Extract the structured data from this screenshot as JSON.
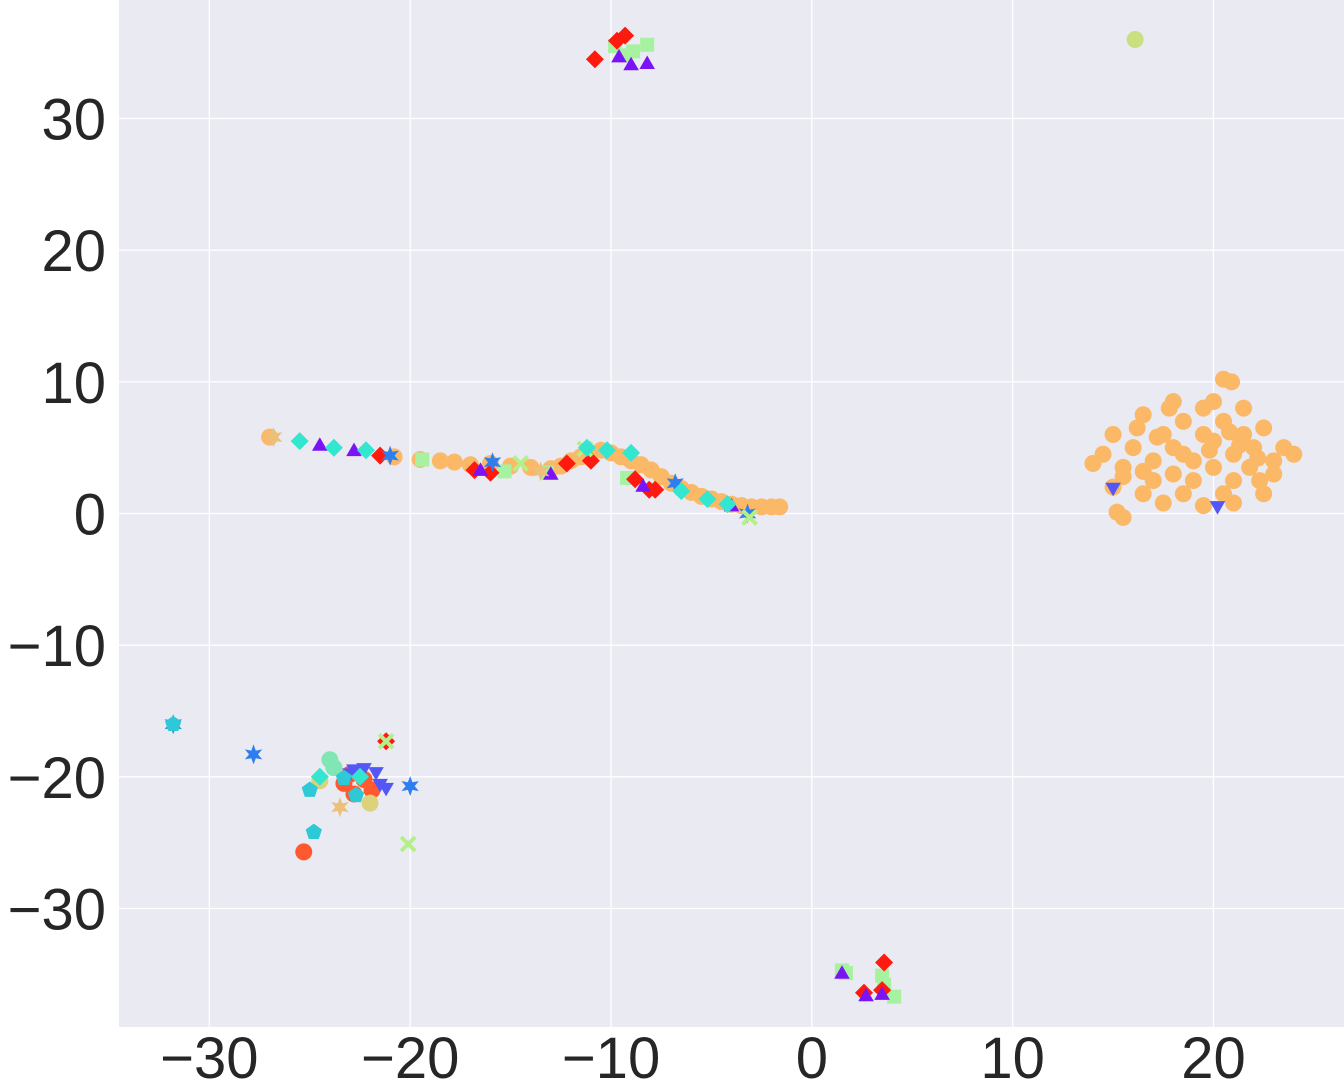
{
  "chart_data": {
    "type": "scatter",
    "title": "",
    "xlabel": "",
    "ylabel": "",
    "xlim": [
      -34.5,
      26.5
    ],
    "ylim": [
      -39,
      39
    ],
    "grid": true,
    "legend": "none",
    "background": "#eaeaf2",
    "x_ticks": [
      {
        "value": -30,
        "label": "−30"
      },
      {
        "value": -20,
        "label": "−20"
      },
      {
        "value": -10,
        "label": "−10"
      },
      {
        "value": 0,
        "label": "0"
      },
      {
        "value": 10,
        "label": "10"
      },
      {
        "value": 20,
        "label": "20"
      }
    ],
    "y_ticks": [
      {
        "value": 30,
        "label": "30"
      },
      {
        "value": 20,
        "label": "20"
      },
      {
        "value": 10,
        "label": "10"
      },
      {
        "value": 0,
        "label": "0"
      },
      {
        "value": -10,
        "label": "−10"
      },
      {
        "value": -20,
        "label": "−20"
      },
      {
        "value": -30,
        "label": "−30"
      }
    ],
    "series": [
      {
        "marker": "circle",
        "color": "#fbb867",
        "points": [
          [
            -27.0,
            5.8
          ],
          [
            -20.8,
            4.3
          ],
          [
            -19.5,
            4.1
          ],
          [
            -18.5,
            4.0
          ],
          [
            -17.8,
            3.9
          ],
          [
            -17.0,
            3.7
          ],
          [
            -16.0,
            3.8
          ],
          [
            -15.0,
            3.6
          ],
          [
            -14.0,
            3.5
          ],
          [
            -13.0,
            3.4
          ],
          [
            -12.5,
            3.6
          ],
          [
            -12.0,
            4.0
          ],
          [
            -11.5,
            4.3
          ],
          [
            -11.0,
            4.6
          ],
          [
            -10.5,
            4.8
          ],
          [
            -10.0,
            4.6
          ],
          [
            -9.5,
            4.3
          ],
          [
            -9.0,
            4.0
          ],
          [
            -8.5,
            3.7
          ],
          [
            -8.0,
            3.3
          ],
          [
            -7.5,
            2.8
          ],
          [
            -7.0,
            2.3
          ],
          [
            -6.5,
            1.9
          ],
          [
            -6.0,
            1.6
          ],
          [
            -5.5,
            1.3
          ],
          [
            -5.0,
            1.1
          ],
          [
            -4.5,
            0.9
          ],
          [
            -4.0,
            0.7
          ],
          [
            -3.5,
            0.6
          ],
          [
            -3.0,
            0.5
          ],
          [
            -2.5,
            0.5
          ],
          [
            -2.0,
            0.5
          ],
          [
            -1.6,
            0.5
          ],
          [
            15.0,
            2.0
          ],
          [
            15.5,
            3.5
          ],
          [
            16.0,
            5.0
          ],
          [
            16.2,
            6.5
          ],
          [
            16.5,
            7.5
          ],
          [
            17.0,
            4.0
          ],
          [
            17.0,
            2.5
          ],
          [
            17.5,
            6.0
          ],
          [
            17.8,
            8.0
          ],
          [
            18.0,
            3.0
          ],
          [
            18.0,
            5.0
          ],
          [
            18.5,
            1.5
          ],
          [
            18.5,
            7.0
          ],
          [
            19.0,
            4.0
          ],
          [
            19.0,
            2.5
          ],
          [
            19.5,
            6.0
          ],
          [
            19.5,
            8.0
          ],
          [
            20.0,
            3.5
          ],
          [
            20.0,
            5.5
          ],
          [
            20.5,
            1.5
          ],
          [
            20.5,
            7.0
          ],
          [
            21.0,
            4.5
          ],
          [
            21.0,
            2.5
          ],
          [
            21.5,
            6.0
          ],
          [
            21.8,
            3.5
          ],
          [
            22.0,
            5.0
          ],
          [
            22.3,
            2.5
          ],
          [
            22.5,
            6.5
          ],
          [
            23.0,
            4.0
          ],
          [
            23.0,
            3.0
          ],
          [
            23.5,
            5.0
          ],
          [
            24.0,
            4.5
          ],
          [
            14.5,
            4.5
          ],
          [
            14.0,
            3.8
          ],
          [
            15.0,
            6.0
          ],
          [
            16.5,
            1.5
          ],
          [
            17.5,
            0.8
          ],
          [
            19.5,
            0.6
          ],
          [
            21.0,
            0.8
          ],
          [
            22.5,
            1.5
          ],
          [
            18.0,
            8.5
          ],
          [
            20.0,
            8.5
          ],
          [
            21.5,
            8.0
          ],
          [
            15.5,
            2.8
          ],
          [
            16.5,
            3.2
          ],
          [
            18.5,
            4.5
          ],
          [
            19.8,
            4.8
          ],
          [
            21.3,
            5.2
          ],
          [
            22.2,
            4.2
          ],
          [
            17.2,
            5.8
          ],
          [
            20.8,
            6.2
          ],
          [
            20.5,
            10.2
          ],
          [
            20.9,
            10.0
          ],
          [
            15.5,
            -0.3
          ],
          [
            15.2,
            0.1
          ]
        ]
      },
      {
        "marker": "circle",
        "color": "#c8e07f",
        "points": [
          [
            16.1,
            36.0
          ]
        ]
      },
      {
        "marker": "circle",
        "color": "#ff5a2f",
        "points": [
          [
            -23.3,
            -20.5
          ],
          [
            -22.8,
            -21.3
          ],
          [
            -22.3,
            -20.2
          ],
          [
            -21.9,
            -21.0
          ],
          [
            -23.0,
            -19.8
          ],
          [
            -25.3,
            -25.7
          ]
        ]
      },
      {
        "marker": "circle",
        "color": "#dcd27a",
        "points": [
          [
            -22.0,
            -22.0
          ],
          [
            -24.5,
            -20.3
          ]
        ]
      },
      {
        "marker": "circle",
        "color": "#7fe6b4",
        "points": [
          [
            -24.0,
            -18.7
          ],
          [
            -23.8,
            -19.3
          ]
        ]
      },
      {
        "marker": "square",
        "color": "#a6f2a0",
        "points": [
          [
            -19.4,
            4.1
          ],
          [
            -15.3,
            3.2
          ],
          [
            -13.2,
            3.1
          ],
          [
            -9.8,
            35.5
          ],
          [
            -8.9,
            35.1
          ],
          [
            -8.2,
            35.6
          ],
          [
            -9.3,
            34.8
          ],
          [
            -9.2,
            2.7
          ],
          [
            1.5,
            -34.7
          ],
          [
            3.5,
            -35.1
          ],
          [
            3.6,
            -35.8
          ],
          [
            4.1,
            -36.7
          ],
          [
            1.7,
            -34.9
          ]
        ]
      },
      {
        "marker": "diamond",
        "color": "#ff1a10",
        "points": [
          [
            -21.5,
            4.4
          ],
          [
            -16.8,
            3.3
          ],
          [
            -16.0,
            3.1
          ],
          [
            -12.2,
            3.8
          ],
          [
            -11.0,
            4.0
          ],
          [
            -8.8,
            2.6
          ],
          [
            -8.1,
            1.8
          ],
          [
            -7.8,
            1.8
          ],
          [
            -10.8,
            34.5
          ],
          [
            -9.3,
            36.3
          ],
          [
            -9.7,
            35.9
          ],
          [
            -21.2,
            -17.3
          ],
          [
            3.6,
            -34.1
          ],
          [
            3.5,
            -36.2
          ],
          [
            2.6,
            -36.4
          ]
        ]
      },
      {
        "marker": "triangle-up",
        "color": "#7b14f4",
        "points": [
          [
            -24.5,
            5.1
          ],
          [
            -22.8,
            4.7
          ],
          [
            -16.5,
            3.2
          ],
          [
            -13.0,
            2.9
          ],
          [
            -9.0,
            34.0
          ],
          [
            -8.2,
            34.1
          ],
          [
            -9.6,
            34.6
          ],
          [
            -8.4,
            2.0
          ],
          [
            -4.0,
            0.5
          ],
          [
            2.7,
            -36.7
          ],
          [
            1.5,
            -35.0
          ],
          [
            3.5,
            -36.6
          ]
        ]
      },
      {
        "marker": "triangle-down",
        "color": "#5457f5",
        "points": [
          [
            -23.0,
            -19.7
          ],
          [
            -21.5,
            -20.5
          ],
          [
            -21.2,
            -20.8
          ],
          [
            -22.3,
            -19.3
          ],
          [
            -22.8,
            -19.4
          ],
          [
            -21.7,
            -19.6
          ],
          [
            15.0,
            2.0
          ],
          [
            20.2,
            0.6
          ]
        ]
      },
      {
        "marker": "star",
        "color": "#2f7ef0",
        "points": [
          [
            -27.8,
            -18.3
          ],
          [
            -20.0,
            -20.7
          ],
          [
            -31.8,
            -16.0
          ],
          [
            -15.9,
            3.9
          ],
          [
            -21.0,
            4.4
          ],
          [
            -6.8,
            2.3
          ],
          [
            -3.2,
            0.0
          ]
        ]
      },
      {
        "marker": "pentagon",
        "color": "#2ec9d6",
        "points": [
          [
            -25.0,
            -21.0
          ],
          [
            -24.8,
            -24.2
          ],
          [
            -31.8,
            -16.0
          ],
          [
            -23.3,
            -20.1
          ],
          [
            -22.7,
            -21.4
          ]
        ]
      },
      {
        "marker": "x",
        "color": "#b3f08a",
        "points": [
          [
            -14.5,
            3.8
          ],
          [
            -21.2,
            -17.3
          ],
          [
            -20.1,
            -25.1
          ],
          [
            -11.3,
            4.9
          ],
          [
            -3.1,
            -0.3
          ]
        ]
      },
      {
        "marker": "diamond",
        "color": "#32e6cf",
        "points": [
          [
            -25.5,
            5.5
          ],
          [
            -23.8,
            5.0
          ],
          [
            -22.2,
            4.8
          ],
          [
            -11.2,
            5.0
          ],
          [
            -10.2,
            4.8
          ],
          [
            -9.0,
            4.6
          ],
          [
            -6.5,
            1.7
          ],
          [
            -5.2,
            1.1
          ],
          [
            -4.2,
            0.7
          ],
          [
            -24.5,
            -20.0
          ],
          [
            -22.5,
            -20.0
          ]
        ]
      },
      {
        "marker": "star",
        "color": "#ecc078",
        "points": [
          [
            -23.5,
            -22.3
          ],
          [
            -13.5,
            3.2
          ],
          [
            -26.8,
            5.8
          ]
        ]
      }
    ]
  }
}
